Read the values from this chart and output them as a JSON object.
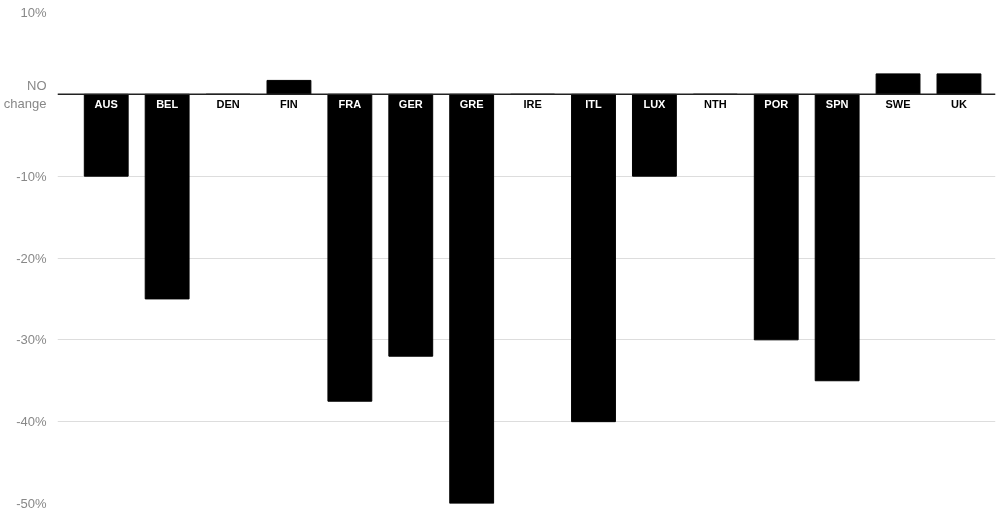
{
  "chart_data": {
    "type": "bar",
    "categories": [
      "AUS",
      "BEL",
      "DEN",
      "FIN",
      "FRA",
      "GER",
      "GRE",
      "IRE",
      "ITL",
      "LUX",
      "NTH",
      "POR",
      "SPN",
      "SWE",
      "UK"
    ],
    "values": [
      -10,
      -25,
      0,
      1.7,
      -37.5,
      -32,
      -50,
      0,
      -40,
      -10,
      0,
      -30,
      -35,
      2.5,
      2.5
    ],
    "color": "#000000",
    "ylim": [
      -50,
      10
    ],
    "yticks": [
      {
        "value": 10,
        "label": "10%"
      },
      {
        "value": 0,
        "label": "NO\nchange"
      },
      {
        "value": -10,
        "label": "-10%"
      },
      {
        "value": -20,
        "label": "-20%"
      },
      {
        "value": -30,
        "label": "-30%"
      },
      {
        "value": -40,
        "label": "-40%"
      },
      {
        "value": -50,
        "label": "-50%"
      }
    ],
    "grid": "y"
  }
}
